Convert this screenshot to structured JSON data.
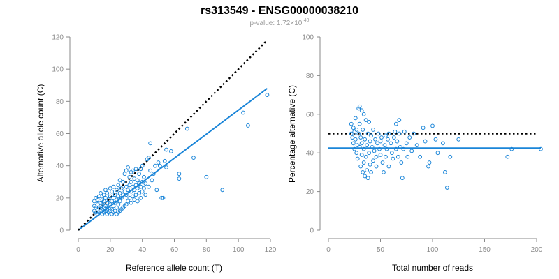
{
  "title": "rs313549 - ENSG00000038210",
  "subtitle": {
    "prefix": "p-value: 1.72×10",
    "exponent": "-40"
  },
  "colors": {
    "points": "#1a85d8",
    "fit": "#1a85d8",
    "reference": "#000000",
    "axis": "#8a8a8a",
    "text": "#000000"
  },
  "chart_data": [
    {
      "type": "scatter",
      "xlabel": "Reference allele count (T)",
      "ylabel": "Alternative allele count (C)",
      "xlim": [
        0,
        120
      ],
      "ylim": [
        0,
        120
      ],
      "xticks": [
        "0",
        "20",
        "40",
        "60",
        "80",
        "100",
        "120"
      ],
      "yticks": [
        "0",
        "20",
        "40",
        "60",
        "80",
        "100",
        "120"
      ],
      "grid": false,
      "reference_line": {
        "style": "dotted",
        "color": "#000000",
        "x": [
          0,
          118
        ],
        "y": [
          0,
          118
        ]
      },
      "fit_line": {
        "style": "solid",
        "color": "#1a85d8",
        "x": [
          0,
          118
        ],
        "y": [
          0,
          88
        ]
      },
      "points": [
        [
          10,
          12
        ],
        [
          10,
          15
        ],
        [
          10,
          18
        ],
        [
          11,
          11
        ],
        [
          11,
          14
        ],
        [
          11,
          20
        ],
        [
          12,
          10
        ],
        [
          12,
          13
        ],
        [
          12,
          16
        ],
        [
          12,
          19
        ],
        [
          13,
          11
        ],
        [
          13,
          14
        ],
        [
          13,
          21
        ],
        [
          14,
          12
        ],
        [
          14,
          15
        ],
        [
          14,
          17
        ],
        [
          14,
          23
        ],
        [
          15,
          10
        ],
        [
          15,
          13
        ],
        [
          15,
          16
        ],
        [
          15,
          19
        ],
        [
          16,
          11
        ],
        [
          16,
          14
        ],
        [
          16,
          18
        ],
        [
          16,
          22
        ],
        [
          17,
          12
        ],
        [
          17,
          15
        ],
        [
          17,
          20
        ],
        [
          17,
          25
        ],
        [
          18,
          10
        ],
        [
          18,
          13
        ],
        [
          18,
          17
        ],
        [
          18,
          23
        ],
        [
          19,
          11
        ],
        [
          19,
          14
        ],
        [
          19,
          19
        ],
        [
          20,
          12
        ],
        [
          20,
          16
        ],
        [
          20,
          21
        ],
        [
          20,
          26
        ],
        [
          21,
          10
        ],
        [
          21,
          13
        ],
        [
          21,
          18
        ],
        [
          21,
          24
        ],
        [
          22,
          11
        ],
        [
          22,
          15
        ],
        [
          22,
          20
        ],
        [
          22,
          27
        ],
        [
          23,
          12
        ],
        [
          23,
          17
        ],
        [
          23,
          22
        ],
        [
          24,
          10
        ],
        [
          24,
          14
        ],
        [
          24,
          19
        ],
        [
          24,
          25
        ],
        [
          25,
          11
        ],
        [
          25,
          16
        ],
        [
          25,
          21
        ],
        [
          25,
          28
        ],
        [
          26,
          12
        ],
        [
          26,
          18
        ],
        [
          26,
          23
        ],
        [
          26,
          31
        ],
        [
          27,
          13
        ],
        [
          27,
          20
        ],
        [
          27,
          26
        ],
        [
          28,
          14
        ],
        [
          28,
          22
        ],
        [
          28,
          30
        ],
        [
          29,
          15
        ],
        [
          29,
          24
        ],
        [
          29,
          35
        ],
        [
          30,
          16
        ],
        [
          30,
          22
        ],
        [
          30,
          27
        ],
        [
          30,
          37
        ],
        [
          31,
          18
        ],
        [
          31,
          25
        ],
        [
          31,
          39
        ],
        [
          32,
          20
        ],
        [
          32,
          28
        ],
        [
          32,
          33
        ],
        [
          33,
          17
        ],
        [
          33,
          24
        ],
        [
          33,
          30
        ],
        [
          34,
          21
        ],
        [
          34,
          27
        ],
        [
          34,
          37
        ],
        [
          35,
          19
        ],
        [
          35,
          25
        ],
        [
          35,
          32
        ],
        [
          36,
          22
        ],
        [
          36,
          28
        ],
        [
          36,
          38
        ],
        [
          37,
          18
        ],
        [
          37,
          26
        ],
        [
          37,
          31
        ],
        [
          38,
          23
        ],
        [
          38,
          29
        ],
        [
          38,
          35
        ],
        [
          39,
          20
        ],
        [
          39,
          27
        ],
        [
          40,
          24
        ],
        [
          40,
          30
        ],
        [
          40,
          40
        ],
        [
          41,
          26
        ],
        [
          41,
          33
        ],
        [
          42,
          22
        ],
        [
          42,
          29
        ],
        [
          43,
          44
        ],
        [
          44,
          27
        ],
        [
          45,
          37
        ],
        [
          45,
          54
        ],
        [
          46,
          31
        ],
        [
          47,
          35
        ],
        [
          48,
          40
        ],
        [
          49,
          25
        ],
        [
          50,
          42
        ],
        [
          51,
          40
        ],
        [
          52,
          20
        ],
        [
          53,
          20
        ],
        [
          54,
          43
        ],
        [
          55,
          39
        ],
        [
          55,
          50
        ],
        [
          58,
          49
        ],
        [
          63,
          32
        ],
        [
          63,
          35
        ],
        [
          68,
          63
        ],
        [
          72,
          45
        ],
        [
          80,
          33
        ],
        [
          90,
          25
        ],
        [
          103,
          73
        ],
        [
          106,
          65
        ],
        [
          118,
          84
        ],
        [
          44,
          45
        ],
        [
          39,
          38
        ],
        [
          33,
          36
        ]
      ]
    },
    {
      "type": "scatter",
      "xlabel": "Total number of reads",
      "ylabel": "Percentage alternative (C)",
      "xlim": [
        0,
        200
      ],
      "ylim": [
        0,
        100
      ],
      "xticks": [
        "0",
        "50",
        "100",
        "150",
        "200"
      ],
      "yticks": [
        "0",
        "20",
        "40",
        "60",
        "80",
        "100"
      ],
      "grid": false,
      "reference_line": {
        "style": "dotted",
        "color": "#000000",
        "x": [
          0,
          200
        ],
        "y": [
          50,
          50
        ]
      },
      "fit_line": {
        "style": "solid",
        "color": "#1a85d8",
        "x": [
          0,
          204
        ],
        "y": [
          42.5,
          42.5
        ]
      },
      "points": [
        [
          22,
          50
        ],
        [
          22,
          55
        ],
        [
          23,
          48
        ],
        [
          24,
          53
        ],
        [
          24,
          45
        ],
        [
          25,
          51
        ],
        [
          25,
          42
        ],
        [
          26,
          58
        ],
        [
          26,
          47
        ],
        [
          27,
          40
        ],
        [
          27,
          52
        ],
        [
          28,
          44
        ],
        [
          28,
          37
        ],
        [
          29,
          63
        ],
        [
          29,
          50
        ],
        [
          30,
          64
        ],
        [
          30,
          43
        ],
        [
          30,
          55
        ],
        [
          31,
          33
        ],
        [
          31,
          48
        ],
        [
          32,
          62
        ],
        [
          32,
          39
        ],
        [
          32,
          45
        ],
        [
          33,
          30
        ],
        [
          33,
          52
        ],
        [
          34,
          60
        ],
        [
          34,
          35
        ],
        [
          34,
          42
        ],
        [
          35,
          28
        ],
        [
          35,
          47
        ],
        [
          36,
          57
        ],
        [
          36,
          38
        ],
        [
          37,
          31
        ],
        [
          37,
          44
        ],
        [
          38,
          50
        ],
        [
          38,
          27
        ],
        [
          39,
          56
        ],
        [
          39,
          40
        ],
        [
          40,
          34
        ],
        [
          40,
          46
        ],
        [
          41,
          49
        ],
        [
          41,
          30
        ],
        [
          42,
          43
        ],
        [
          43,
          36
        ],
        [
          43,
          52
        ],
        [
          44,
          41
        ],
        [
          45,
          47
        ],
        [
          46,
          33
        ],
        [
          46,
          38
        ],
        [
          47,
          45
        ],
        [
          48,
          50
        ],
        [
          49,
          42
        ],
        [
          50,
          46
        ],
        [
          50,
          39
        ],
        [
          51,
          48
        ],
        [
          52,
          35
        ],
        [
          53,
          30
        ],
        [
          54,
          44
        ],
        [
          55,
          49
        ],
        [
          55,
          38
        ],
        [
          56,
          42
        ],
        [
          57,
          47
        ],
        [
          58,
          33
        ],
        [
          58,
          50
        ],
        [
          60,
          45
        ],
        [
          61,
          40
        ],
        [
          62,
          37
        ],
        [
          63,
          48
        ],
        [
          64,
          51
        ],
        [
          65,
          55
        ],
        [
          65,
          42
        ],
        [
          66,
          46
        ],
        [
          67,
          38
        ],
        [
          68,
          57
        ],
        [
          68,
          50
        ],
        [
          69,
          43
        ],
        [
          70,
          35
        ],
        [
          71,
          27
        ],
        [
          72,
          42
        ],
        [
          73,
          51
        ],
        [
          75,
          45
        ],
        [
          76,
          38
        ],
        [
          78,
          48
        ],
        [
          80,
          41
        ],
        [
          82,
          50
        ],
        [
          85,
          44
        ],
        [
          88,
          38
        ],
        [
          91,
          53
        ],
        [
          93,
          46
        ],
        [
          96,
          33
        ],
        [
          97,
          35
        ],
        [
          100,
          54
        ],
        [
          103,
          47
        ],
        [
          105,
          40
        ],
        [
          110,
          45
        ],
        [
          112,
          30
        ],
        [
          114,
          22
        ],
        [
          117,
          38
        ],
        [
          125,
          47
        ],
        [
          172,
          38
        ],
        [
          176,
          42
        ],
        [
          204,
          42
        ]
      ]
    }
  ]
}
